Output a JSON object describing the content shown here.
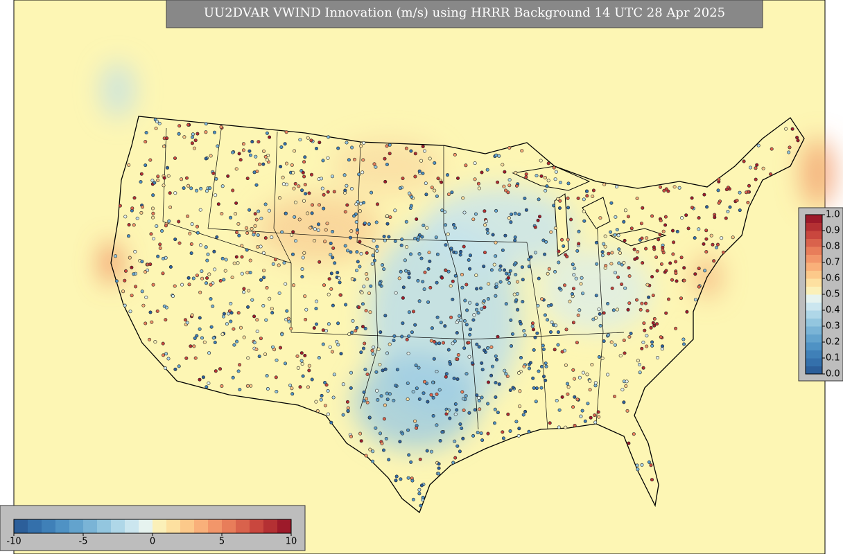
{
  "title": "UU2DVAR VWIND Innovation (m/s) using HRRR Background 14 UTC 28 Apr 2025",
  "innovation_colorbar": {
    "range": [
      -10,
      10
    ],
    "ticks": [
      -10,
      -5,
      0,
      5,
      10
    ]
  },
  "weight_colorbar": {
    "range": [
      0,
      1
    ],
    "ticks": [
      {
        "value": 0,
        "label": "0.0"
      },
      0.1,
      0.2,
      0.3,
      0.4,
      0.5,
      0.6,
      0.7,
      0.8,
      0.9,
      {
        "value": 1,
        "label": "1.0"
      }
    ]
  }
}
